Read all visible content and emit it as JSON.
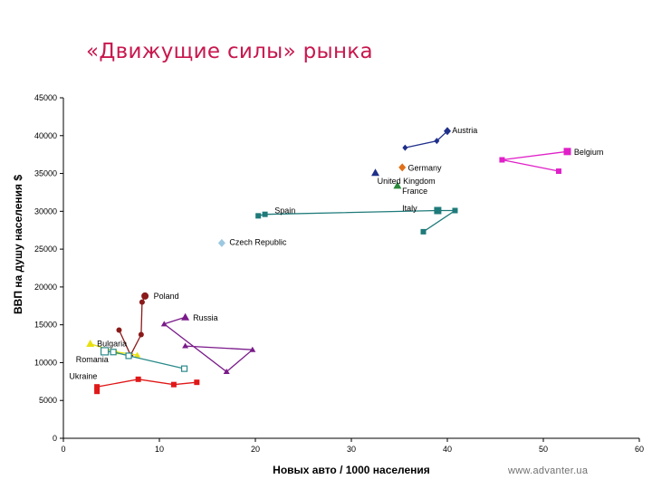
{
  "slide": {
    "title": "«Движущие силы» рынка",
    "watermark": "www.advanter.ua"
  },
  "chart_data": {
    "type": "scatter",
    "xlabel": "Новых авто / 1000 населения",
    "ylabel": "ВВП на душу населения  $",
    "xlim": [
      0,
      60
    ],
    "ylim": [
      0,
      45000
    ],
    "xticks": [
      0,
      10,
      20,
      30,
      40,
      50,
      60
    ],
    "yticks": [
      0,
      5000,
      10000,
      15000,
      20000,
      25000,
      30000,
      35000,
      40000,
      45000
    ],
    "grid": false,
    "legend": "none",
    "series": [
      {
        "name": "Austria",
        "color": "#1f2f8a",
        "marker": "diamond",
        "line": true,
        "points": [
          [
            35.6,
            38400
          ],
          [
            38.9,
            39300
          ],
          [
            40.0,
            40600
          ]
        ],
        "label_at": 2
      },
      {
        "name": "Germany",
        "color": "#e0701a",
        "marker": "diamond",
        "line": false,
        "points": [
          [
            35.3,
            35800
          ]
        ],
        "label_at": 0
      },
      {
        "name": "Belgium",
        "color": "#e020c8",
        "marker": "square",
        "line": true,
        "points": [
          [
            51.6,
            35300
          ],
          [
            45.7,
            36800
          ],
          [
            52.5,
            37900
          ]
        ],
        "label_at": 2
      },
      {
        "name": "United Kingdom",
        "color": "#1f2f8a",
        "marker": "triangle",
        "line": false,
        "points": [
          [
            32.5,
            35100
          ]
        ],
        "label_at": 0
      },
      {
        "name": "France",
        "color": "#2a8a3a",
        "marker": "triangle",
        "line": false,
        "points": [
          [
            34.8,
            33400
          ]
        ],
        "label_at": 0
      },
      {
        "name": "Italy",
        "color": "#1f7a7a",
        "marker": "square",
        "line": true,
        "points": [
          [
            37.5,
            27300
          ],
          [
            40.8,
            30100
          ],
          [
            39.0,
            30100
          ],
          [
            21.0,
            29600
          ],
          [
            20.3,
            29400
          ]
        ],
        "label_at": 2
      },
      {
        "name": "Spain",
        "color": "#156a6a",
        "marker": "square",
        "line": false,
        "points": [],
        "label_at": null
      },
      {
        "name": "Czech Republic",
        "color": "#9ac8e0",
        "marker": "diamond",
        "line": false,
        "points": [
          [
            16.5,
            25800
          ]
        ],
        "label_at": 0
      },
      {
        "name": "Poland",
        "color": "#8b1a1a",
        "marker": "circle",
        "line": true,
        "points": [
          [
            5.8,
            14300
          ],
          [
            7.0,
            11000
          ],
          [
            8.1,
            13700
          ],
          [
            8.2,
            18000
          ],
          [
            8.5,
            18800
          ]
        ],
        "label_at": 4
      },
      {
        "name": "Russia",
        "color": "#7a1a8a",
        "marker": "triangle",
        "line": true,
        "points": [
          [
            12.7,
            12200
          ],
          [
            19.7,
            11700
          ],
          [
            17.0,
            8800
          ],
          [
            10.5,
            15100
          ],
          [
            12.7,
            16000
          ]
        ],
        "label_at": 4
      },
      {
        "name": "Bulgaria",
        "color": "#e8e010",
        "marker": "triangle",
        "line": true,
        "points": [
          [
            7.7,
            11000
          ],
          [
            5.5,
            11400
          ],
          [
            2.8,
            12500
          ]
        ],
        "label_at": 2
      },
      {
        "name": "Romania",
        "color": "#2a8a8a",
        "marker": "square",
        "line": true,
        "points": [
          [
            12.6,
            9200
          ],
          [
            6.8,
            10900
          ],
          [
            5.2,
            11400
          ],
          [
            4.3,
            11500
          ]
        ],
        "label_at": 3
      },
      {
        "name": "Ukraine",
        "color": "#e01818",
        "marker": "square",
        "line": true,
        "points": [
          [
            3.5,
            6200
          ],
          [
            3.5,
            6800
          ],
          [
            7.8,
            7800
          ],
          [
            11.5,
            7100
          ],
          [
            13.9,
            7400
          ]
        ],
        "label_at": null
      }
    ],
    "annotations": [
      {
        "text": "Austria",
        "x": 40.5,
        "y": 40700
      },
      {
        "text": "Germany",
        "x": 35.9,
        "y": 35700
      },
      {
        "text": "Belgium",
        "x": 53.2,
        "y": 37800
      },
      {
        "text": "United Kingdom",
        "x": 32.7,
        "y": 34000
      },
      {
        "text": "France",
        "x": 35.3,
        "y": 32700
      },
      {
        "text": "Italy",
        "x": 35.3,
        "y": 30400
      },
      {
        "text": "Spain",
        "x": 22.0,
        "y": 30100
      },
      {
        "text": "Czech Republic",
        "x": 17.3,
        "y": 25900
      },
      {
        "text": "Poland",
        "x": 9.4,
        "y": 18800
      },
      {
        "text": "Russia",
        "x": 13.5,
        "y": 15900
      },
      {
        "text": "Bulgaria",
        "x": 3.5,
        "y": 12500
      },
      {
        "text": "Romania",
        "x": 1.3,
        "y": 10400
      },
      {
        "text": "Ukraine",
        "x": 0.6,
        "y": 8200
      }
    ]
  }
}
